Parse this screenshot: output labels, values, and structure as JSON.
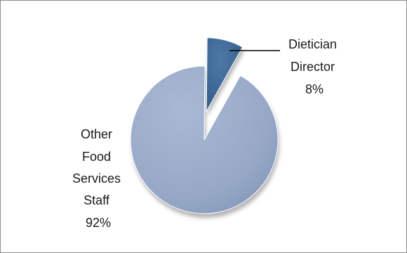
{
  "chart_data": {
    "type": "pie",
    "title": "",
    "legend": "none",
    "slices": [
      {
        "label_lines": [
          "Dietician",
          "Director",
          "8%"
        ],
        "value": 8,
        "color": "#3c6796",
        "exploded": true
      },
      {
        "label_lines": [
          "Other",
          "Food",
          "Services",
          "Staff",
          "92%"
        ],
        "value": 92,
        "color": "#96a8c6",
        "exploded": false
      }
    ]
  }
}
